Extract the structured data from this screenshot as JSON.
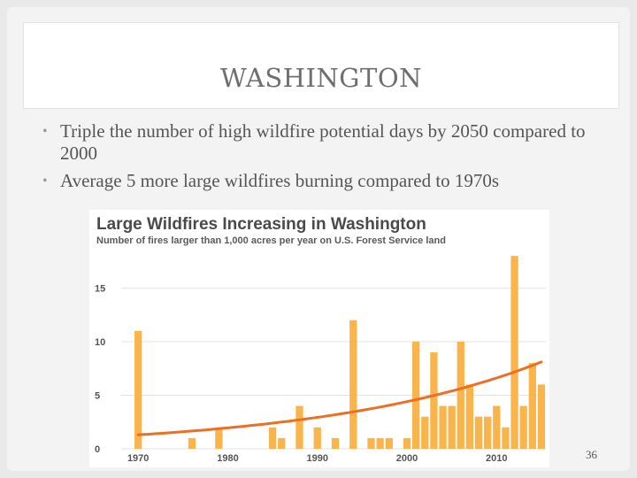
{
  "slide": {
    "title": "WASHINGTON",
    "bullets": [
      "Triple the number of high wildfire potential days by 2050 compared to 2000",
      "Average 5 more large wildfires burning compared to 1970s"
    ],
    "bullet_glyph": "•",
    "page_number": "36"
  },
  "chart_data": {
    "type": "bar",
    "title": "Large Wildfires Increasing in Washington",
    "subtitle": "Number of fires larger than 1,000 acres per year on U.S. Forest Service land",
    "x": [
      1970,
      1971,
      1972,
      1973,
      1974,
      1975,
      1976,
      1977,
      1978,
      1979,
      1980,
      1981,
      1982,
      1983,
      1984,
      1985,
      1986,
      1987,
      1988,
      1989,
      1990,
      1991,
      1992,
      1993,
      1994,
      1995,
      1996,
      1997,
      1998,
      1999,
      2000,
      2001,
      2002,
      2003,
      2004,
      2005,
      2006,
      2007,
      2008,
      2009,
      2010,
      2011,
      2012,
      2013,
      2014,
      2015
    ],
    "values": [
      11,
      0,
      0,
      0,
      0,
      0,
      1,
      0,
      0,
      2,
      0,
      0,
      0,
      0,
      0,
      2,
      1,
      0,
      4,
      0,
      2,
      0,
      1,
      0,
      12,
      0,
      1,
      1,
      1,
      0,
      1,
      10,
      3,
      9,
      4,
      4,
      10,
      6,
      3,
      3,
      4,
      2,
      18,
      4,
      8,
      6
    ],
    "xticks": [
      1970,
      1980,
      1990,
      2000,
      2010
    ],
    "yticks": [
      0,
      5,
      10,
      15
    ],
    "ylim": [
      0,
      19
    ],
    "xlim": [
      1969,
      2016
    ],
    "trend": {
      "type": "exponential",
      "start": [
        1970,
        1.3
      ],
      "end": [
        2015,
        8.1
      ]
    },
    "colors": {
      "bar": "#f9b54b",
      "trend": "#ec6f23",
      "title": "#4a4a4a",
      "grid": "#e3e3e3",
      "tick": "#555555"
    }
  }
}
